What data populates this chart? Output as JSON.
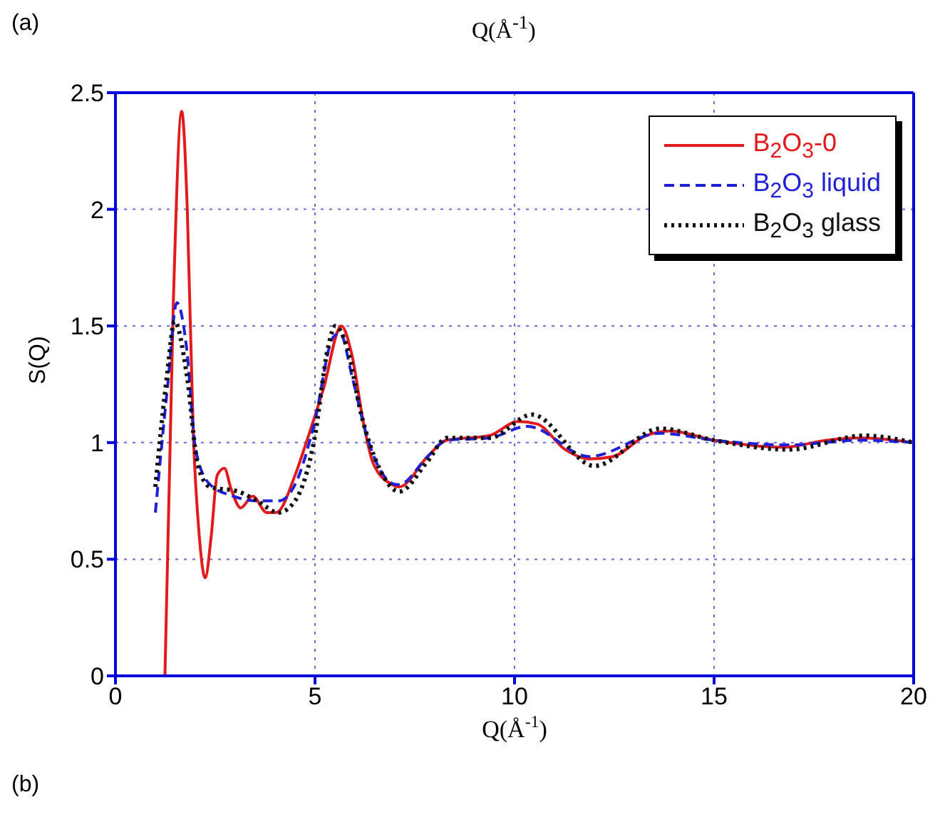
{
  "chart_data": {
    "type": "line",
    "xlabel": "Q(Å$^{-1}$)",
    "ylabel": "S(Q)",
    "annotations": [
      "(a)",
      "Q(Å$^{-1}$)",
      "(b)"
    ],
    "xlim": [
      0,
      20
    ],
    "xticks": [
      0,
      5,
      10,
      15,
      20
    ],
    "ylim": [
      0,
      2.5
    ],
    "yticks": [
      0,
      0.5,
      1,
      1.5,
      2,
      2.5
    ],
    "grid": true,
    "legend": "top right",
    "marker": "none",
    "series": [
      {
        "name": "B$_{2}$O$_{3}$-0",
        "color": "#e31a1c",
        "line_style": "solid",
        "x": [
          1.24,
          1.45,
          1.66,
          1.8,
          1.95,
          2.1,
          2.25,
          2.4,
          2.55,
          2.73,
          2.9,
          3.14,
          3.44,
          3.79,
          4.03,
          4.5,
          4.8,
          5.21,
          5.66,
          5.92,
          6.22,
          6.46,
          6.93,
          7.11,
          7.82,
          8.3,
          9.37,
          10.08,
          10.56,
          11.27,
          11.87,
          12.46,
          13.3,
          13.9,
          15,
          16.75,
          17.82,
          18.65,
          20
        ],
        "values": [
          0,
          1.6,
          2.42,
          2.0,
          1.04,
          0.6,
          0.42,
          0.6,
          0.86,
          0.89,
          0.8,
          0.72,
          0.77,
          0.7,
          0.7,
          0.86,
          1.01,
          1.23,
          1.5,
          1.38,
          1.08,
          0.91,
          0.82,
          0.81,
          0.94,
          1.01,
          1.03,
          1.09,
          1.08,
          0.97,
          0.93,
          0.94,
          1.03,
          1.05,
          1.01,
          0.98,
          1.01,
          1.02,
          1.0
        ]
      },
      {
        "name": "B$_{2}$O$_{3}$ liquid",
        "color": "#1f1fd6",
        "line_style": "dashed",
        "x": [
          1.0,
          1.3,
          1.54,
          1.78,
          2.01,
          2.37,
          2.96,
          3.55,
          4.09,
          4.5,
          4.98,
          5.45,
          5.63,
          5.92,
          6.28,
          6.64,
          7.05,
          7.11,
          7.82,
          8.3,
          9.37,
          10.32,
          11.87,
          13.65,
          15,
          16.87,
          18.65,
          20
        ],
        "values": [
          0.7,
          1.23,
          1.6,
          1.41,
          0.97,
          0.82,
          0.77,
          0.75,
          0.75,
          0.82,
          1.08,
          1.45,
          1.47,
          1.29,
          1.04,
          0.88,
          0.82,
          0.82,
          0.94,
          1.01,
          1.02,
          1.07,
          0.94,
          1.04,
          1.01,
          0.99,
          1.01,
          1.0
        ]
      },
      {
        "name": "B$_{2}$O$_{3}$ glass",
        "color": "#111111",
        "line_style": "dotted",
        "x": [
          1.0,
          1.3,
          1.48,
          1.78,
          2.07,
          2.37,
          3.08,
          3.55,
          4.09,
          4.5,
          4.98,
          5.33,
          5.51,
          5.8,
          6.16,
          6.64,
          7.11,
          7.82,
          8.3,
          9.37,
          10.44,
          12.0,
          13.65,
          15,
          16.87,
          18.77,
          20
        ],
        "values": [
          0.81,
          1.3,
          1.52,
          1.3,
          0.9,
          0.81,
          0.79,
          0.75,
          0.7,
          0.75,
          1.01,
          1.41,
          1.5,
          1.41,
          1.12,
          0.88,
          0.79,
          0.92,
          1.02,
          1.02,
          1.12,
          0.9,
          1.06,
          1.01,
          0.97,
          1.03,
          1.0
        ]
      }
    ]
  }
}
